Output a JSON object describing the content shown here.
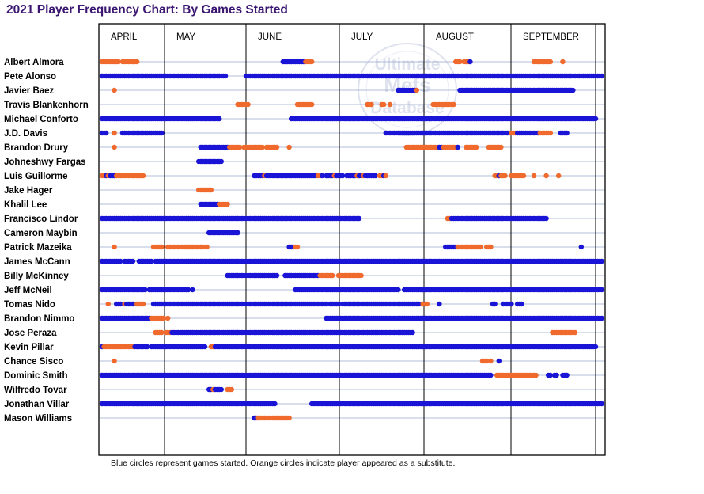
{
  "title": "2021 Player Frequency Chart: By Games Started",
  "footnote": "Blue circles represent games started. Orange circles indicate player appeared as a substitute.",
  "watermark": "Ultimate Mets Database",
  "colors": {
    "started": "#1a14d6",
    "substitute": "#ef6a2c",
    "row_line": "#9aa6cc",
    "title": "#3b1670"
  },
  "chart_data": {
    "type": "scatter",
    "title": "2021 Player Frequency Chart: By Games Started",
    "months": [
      "APRIL",
      "MAY",
      "JUNE",
      "JULY",
      "AUGUST",
      "SEPTEMBER"
    ],
    "legend": {
      "started": "Blue circles represent games started.",
      "substitute": "Orange circles indicate player appeared as a substitute."
    },
    "players": [
      {
        "name": "Albert Almora",
        "pattern": "ooAoooooo.AooAoooo......................................................................bbbbbbbbbbboooo.....................................................................Aoo.Aoob..............................ooooooooo.....o..........................."
      },
      {
        "name": "Pete Alonso",
        "pattern": "bbbbbbbbbbbbbbbbbbbbbbbbbbbbbbbbbbbbbbbbbbbbbbbbbbbbbbbbbbbbb.........bbbbbbbbbbbbbbbbbbbbbbbbbbbbbbbbbbbbbbbbbbbbbbbbbbbbbbbbbbbbbbbbbbbbbbbbbbbbbbbbbbbbbbbbbbbbbbbbbbbbbbbbbbbbbbbbbbbbbbbbbbbbbbbbbbbbbbbbbbbbbbbbbbbbbbbbbbbbbbbbbbbbbbbbbbbbbbbbbbbbbb"
      },
      {
        "name": "Javier Baez",
        "pattern": "......o.........................................................................................................................................bbbbbbbbbo....................bbbbbbbbbbbbbbbbbbbbbbbbbbbbbbbbbbbbbbbbbbbbbbbbbbbbbbbb..."
      },
      {
        "name": "Travis Blankenhorn",
        "pattern": "..................................................................oooooo.......................oooooooo..........................ooo....oo..o....................ooooooooooo..............................................................."
      },
      {
        "name": "Michael Conforto",
        "pattern": "bbbbbbbbbbbbbbbbbbbbbbbbbbbbbbbbbbbbbbbbbbbbbbbbbbbbbbbbbb..................................bbbbBbbbbbbbbbbBbbbbbbbbbbbbbbbbbbbbbbbbbbbbbbbbbbbbbbbbbbbbbbbbbbbbbbbbbbbbbbbbbbbbbbbbbbbbbbbbbbbbbBbbbbbbbbbbbbbbbbbbbbbbbbbbbbbbbbbbbbbbbbbbbbbbb"
      },
      {
        "name": "J.D. Davis",
        "pattern": "bbb...o...bbbbbbbbbbbbbbbbbbbb............................................................................................................bbbbbbbbbBbbbbbbbbbbbbbbbbbbbbbbbbbbbbbbbbbbbbbbbbbbbbbbbbbbboooBbbbbbbbbbboooooo....bbbb..................."
      },
      {
        "name": "Brandon Drury",
        "pattern": "......o.........................................bbbbbBbbbbbbbboooooo.oooooooooo.oooooo.....o........................................................ooooooooooooAAAAbbooooooob...oooooo.....ooooooo..........................................."
      },
      {
        "name": "Johneshwy Fargas",
        "pattern": "...............................................bbbbbbbbbbbb......................................................................................................................................................................................"
      },
      {
        "name": "Luis Guillorme",
        "pattern": "oobAbbbooAooooooooooo.....................................................bbbbbAbbbbBbbbbbbbbbbbbbbbbbbbboob.bbbbAbbbb.bbbbbobbAbbbbbb.oobo....................................................oobooo..ooooooo....o.....o.....o"
      },
      {
        "name": "Jake Hager",
        "pattern": "...............................................ooooooo...................................................................................................................................................................................."
      },
      {
        "name": "Khalil Lee",
        "pattern": "................................................bbbbbbbbbooooo............................................................................................................................................................................."
      },
      {
        "name": "Francisco Lindor",
        "pattern": "bbbbbbbbbbbbbbbbbbbbbbbbbbbbbbbbbbbbbbbbbbbbbbbbbbbbbbbbbbbbbbbbbbbbbbbbbbbbbbbbbbbbbbbbbbbbbbbbbbbbbbbbbbbbbbbbbbbbbbbbbbbbbb..........................................oobbbbbbBbbbbbbbbbbbbbbbbbbbbbbbbbbbbbbbbbbbbbbbb"
      },
      {
        "name": "Cameron Maybin",
        "pattern": "....................................................bbbbbbbbbbbbbbb........................................................................................................................................................................"
      },
      {
        "name": "Patrick Mazeika",
        "pattern": "......o..................ooooo..oooo.o.ooooooooooo.o.......................................bbboo.......................................................................bbbbbboooooooooooo..ooo...........................................b"
      },
      {
        "name": "James McCann",
        "pattern": "bbbbbbbbbb.bbbbb..bbbbbbb.bbbbbbbbbbbbbbbbbbbbbbbbbbbbbbbbbbbbbbbbbbbbbbbbbbbbbbbbbbbbbbbbbbbbbbbbbbbbbbbbbbbbbbbbbbbbbbbbbbbbbbbbbbbbbbbbbbbbbbbbbbbbbbbbbbbbbbbbbbbbbbbbbbbbbbbbbbbbbbbbbbbbbbbbbbbbbbbbbbbbbbbbbbbbbbbbbbbbbbbbbbbbbbbbbbbbbbbbbbbbb"
      },
      {
        "name": "Billy McKinney",
        "pattern": ".............................................................bbbbbbbbbbbbbbbbbbbbbbbbb...bbbbbbbbbbbbbbbbbooooooo..oooooooooooo..........................................................................................................."
      },
      {
        "name": "Jeff McNeil",
        "pattern": "bbbbbbbbbbbbbbbbbbbbbb.bbbbbbbbbbbbbbbbbbbb.b.................................................bbbbbbbbbbbbbbbbbbbbbbbbbbbbbbbbbbbbbbbbbbbbbbbbbbb..bbbbbbbbbbbbbbbbbbbbbbbbbbbbbbbbbbbbbbbbbbbbbbbbbbbbbbbbbbbbbbbbbbbbbbbbbbbbbbbbbbbbbbbbbbbbbbbbbbbbbbb"
      },
      {
        "name": "Tomas Nido",
        "pattern": "...o...bbb.obbbb.oooo....bbbbbbbbbbbbbbbbbbbbbbbbbbbbbbbbbbbbbbbbbbbbbbbbbbbbbbbbbbbbbbbbbbbbbbbbbbbbbbbbbbbbb.bbbbb.bbbbbbbbbbbbbbbbbbbbbbbbbbbbbbbbbbbbbb.ooo.....b.........................bb...bbbbb..bbb.."
      },
      {
        "name": "Brandon Nimmo",
        "pattern": "bbbbbbbbbbbbbbbbbbbbbbbbooooooo.o............................................................................bbbbbbbbbbbbbbbbbbbbbbbbbbbbbbbbbbbbbbbbbbbbbbbbbbbbbbbbbbbbbbbbbbbbbbbbbbbbbbbbbbbbbbbbbbbbbbbbbbbbbbbbbbbbbbbbbbbbbbbbbbbbbbbbbbbbbbbbbbbbbbbbbbbbbbbbbbbbbb"
      },
      {
        "name": "Jose Peraza",
        "pattern": "..........................oooo.ooobbbbbbbbbbbbbbbbbbbbbbbbbbbbbbbbbbbbbbbbbbbbbbbbbbbbbbbbbbbbbbbbbbbbbbbbbbbbbbbbbbbbbbbbbbbbbbbbbbbbbbbbbbbbbbbbbbbbbb...................................................................oooooooooooo"
      },
      {
        "name": "Kevin Pillar",
        "pattern": "booooooooooooooAbbbbbbb.bbbbbbbbbbbbbbbbbbbbbbbbbbb..oobbbbbbbbbbbbbbbbbbbbbbbbbbbbbbbbbbbbbbbbbbbbbbbbbbbbbbbbbbbbbbbbbbbbbbbbbbbbbbbbbbbbbbbbbbbbbbbbbbbbbbbbbbbbbbbbbbbbbbbbbbbbbbbbbbbbbbbbbbbbbbbbbbbbbbbbbbbbbbbbbbbbbbbbbbbbbbbbbbbbbbbbbb"
      },
      {
        "name": "Chance Sisco",
        "pattern": "......o..................................................................................................................................................................................ooo.o...b......................................."
      },
      {
        "name": "Dominic Smith",
        "pattern": "bbbbbbbbbbbbbbbbbbbbbbbbbbbbbbbbbbbbbbbbbbbbbbbbbbbbbbbbbbbbbbbbbbbbbbbbbbbbbbbbbbbbbbbbbbbbbbbbbbbbbbbbbbbbbbbbbbbbbbbbbbbbbbbbbbbbbbbbbbbbbbbbbbbbbbbbbbbbbbbbbbbbbbbbbbbbbbbbbbbbbbbbbbbbbb..oooooooooooooooooooo.....bb.bb..bbb"
      },
      {
        "name": "Wilfredo Tovar",
        "pattern": "....................................................bbAbbbb..ooo........................................................................................................................................................................"
      },
      {
        "name": "Jonathan Villar",
        "pattern": "bbbbbbbbbbbbbbbbbbbbbbbbbbbbbbbbbbbbbbbbbbbbbbbbbbbbbbbbbbbbbbbbbbbbbbbbbbbbbbbbbbbbb.................bbbbbbbbbbbbbbbbbbbbbbbbbbbbbbbbbbbbbbbbbbbbbbbbbbbbbbbbbbbbbbbbbbbbbbbbbbbbbbbbbbbbbbbbbbbbbbbbbbbbbbbbbbbbbbbbbbbbbbbbbbbbbbbbbbbbbbbbbbbbbbbbbbbb"
      },
      {
        "name": "Mason Williams",
        "pattern": "..........................................................................bbooooooAooooooooo................................................................................................................................................."
      }
    ]
  }
}
